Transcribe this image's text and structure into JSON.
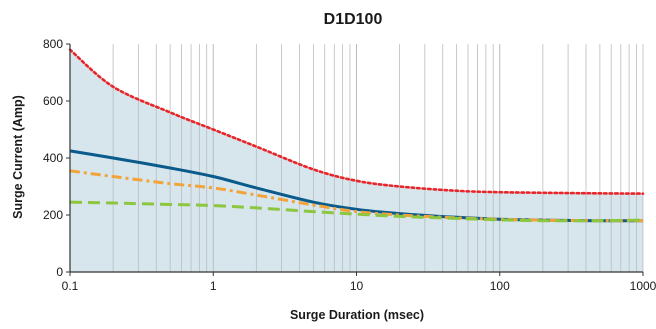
{
  "chart_data": {
    "type": "line",
    "title": "D1D100",
    "xlabel": "Surge Duration (msec)",
    "ylabel": "Surge Current (Amp)",
    "x_scale": "log",
    "xlim": [
      0.1,
      1000
    ],
    "ylim": [
      0,
      800
    ],
    "x_ticks": [
      "0.1",
      "1",
      "10",
      "100",
      "1000"
    ],
    "y_ticks": [
      "0",
      "200",
      "400",
      "600",
      "800"
    ],
    "grid": {
      "vertical_minor": true,
      "horizontal": false
    },
    "legend": "none",
    "area": {
      "fill_color": "#d6e6ec",
      "x": [
        0.1,
        0.2,
        0.5,
        1,
        2,
        5,
        10,
        20,
        50,
        100,
        200,
        500,
        1000
      ],
      "y": [
        780,
        650,
        560,
        500,
        440,
        360,
        320,
        300,
        285,
        280,
        278,
        276,
        275
      ]
    },
    "series": [
      {
        "color": "#e8262a",
        "style": "dotted",
        "x": [
          0.1,
          0.2,
          0.5,
          1,
          2,
          5,
          10,
          20,
          50,
          100,
          200,
          500,
          1000
        ],
        "y": [
          780,
          650,
          560,
          500,
          440,
          360,
          320,
          300,
          285,
          280,
          278,
          276,
          275
        ]
      },
      {
        "color": "#0a5a8c",
        "style": "solid",
        "x": [
          0.1,
          0.2,
          0.5,
          1,
          2,
          5,
          10,
          20,
          50,
          100,
          200,
          500,
          1000
        ],
        "y": [
          425,
          400,
          365,
          335,
          295,
          245,
          220,
          205,
          192,
          185,
          182,
          180,
          180
        ]
      },
      {
        "color": "#f2a43a",
        "style": "dash-dot",
        "x": [
          0.1,
          0.2,
          0.5,
          1,
          2,
          5,
          10,
          20,
          50,
          100,
          200,
          500,
          1000
        ],
        "y": [
          355,
          335,
          310,
          295,
          270,
          235,
          212,
          200,
          190,
          185,
          182,
          180,
          180
        ]
      },
      {
        "color": "#8dc63f",
        "style": "dashed",
        "x": [
          0.1,
          0.2,
          0.5,
          1,
          2,
          5,
          10,
          20,
          50,
          100,
          200,
          500,
          1000
        ],
        "y": [
          245,
          242,
          237,
          233,
          225,
          212,
          203,
          195,
          188,
          183,
          180,
          180,
          182
        ]
      }
    ]
  }
}
